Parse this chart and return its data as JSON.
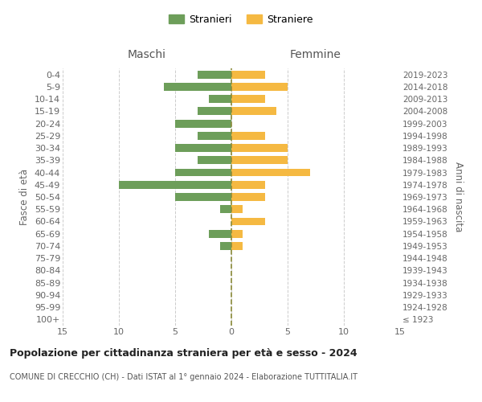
{
  "age_groups": [
    "100+",
    "95-99",
    "90-94",
    "85-89",
    "80-84",
    "75-79",
    "70-74",
    "65-69",
    "60-64",
    "55-59",
    "50-54",
    "45-49",
    "40-44",
    "35-39",
    "30-34",
    "25-29",
    "20-24",
    "15-19",
    "10-14",
    "5-9",
    "0-4"
  ],
  "birth_years": [
    "≤ 1923",
    "1924-1928",
    "1929-1933",
    "1934-1938",
    "1939-1943",
    "1944-1948",
    "1949-1953",
    "1954-1958",
    "1959-1963",
    "1964-1968",
    "1969-1973",
    "1974-1978",
    "1979-1983",
    "1984-1988",
    "1989-1993",
    "1994-1998",
    "1999-2003",
    "2004-2008",
    "2009-2013",
    "2014-2018",
    "2019-2023"
  ],
  "males": [
    0,
    0,
    0,
    0,
    0,
    0,
    1,
    2,
    0,
    1,
    5,
    10,
    5,
    3,
    5,
    3,
    5,
    3,
    2,
    6,
    3
  ],
  "females": [
    0,
    0,
    0,
    0,
    0,
    0,
    1,
    1,
    3,
    1,
    3,
    3,
    7,
    5,
    5,
    3,
    0,
    4,
    3,
    5,
    3
  ],
  "male_color": "#6d9e5a",
  "female_color": "#f5b942",
  "grid_color": "#cccccc",
  "center_line_color": "#8b8b3a",
  "title": "Popolazione per cittadinanza straniera per età e sesso - 2024",
  "subtitle": "COMUNE DI CRECCHIO (CH) - Dati ISTAT al 1° gennaio 2024 - Elaborazione TUTTITALIA.IT",
  "ylabel_left": "Fasce di età",
  "ylabel_right": "Anni di nascita",
  "header_left": "Maschi",
  "header_right": "Femmine",
  "legend_male": "Stranieri",
  "legend_female": "Straniere",
  "xlim": 15,
  "background_color": "#ffffff"
}
